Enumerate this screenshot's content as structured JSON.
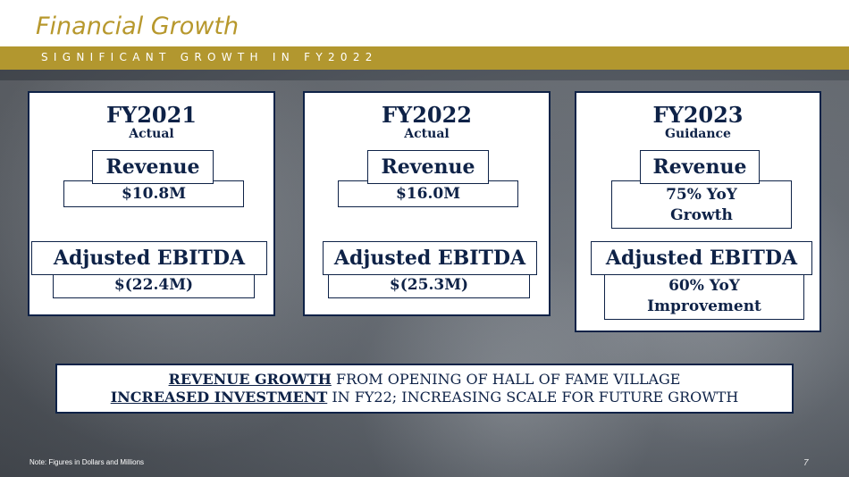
{
  "header": {
    "title": "Financial Growth",
    "subtitle": "SIGNIFICANT GROWTH IN FY2022",
    "accent_color": "#b2972f",
    "title_color": "#b7982d"
  },
  "cards": [
    {
      "year": "FY2021",
      "label": "Actual",
      "revenue_label": "Revenue",
      "revenue_value": "$10.8M",
      "ebitda_label": "Adjusted EBITDA",
      "ebitda_value": "$(22.4M)"
    },
    {
      "year": "FY2022",
      "label": "Actual",
      "revenue_label": "Revenue",
      "revenue_value": "$16.0M",
      "ebitda_label": "Adjusted EBITDA",
      "ebitda_value": "$(25.3M)"
    },
    {
      "year": "FY2023",
      "label": "Guidance",
      "revenue_label": "Revenue",
      "revenue_value_line1": "75% YoY",
      "revenue_value_line2": "Growth",
      "ebitda_label": "Adjusted EBITDA",
      "ebitda_value_line1": "60% YoY",
      "ebitda_value_line2": "Improvement"
    }
  ],
  "banner": {
    "line1_emphasis": "REVENUE GROWTH",
    "line1_rest": " FROM OPENING OF HALL OF FAME VILLAGE",
    "line2_emphasis": "INCREASED INVESTMENT",
    "line2_rest": " IN FY22; INCREASING SCALE FOR FUTURE GROWTH"
  },
  "footer": {
    "note": "Note: Figures in Dollars and Millions",
    "page_number": "7"
  },
  "colors": {
    "navy": "#0e2247"
  }
}
